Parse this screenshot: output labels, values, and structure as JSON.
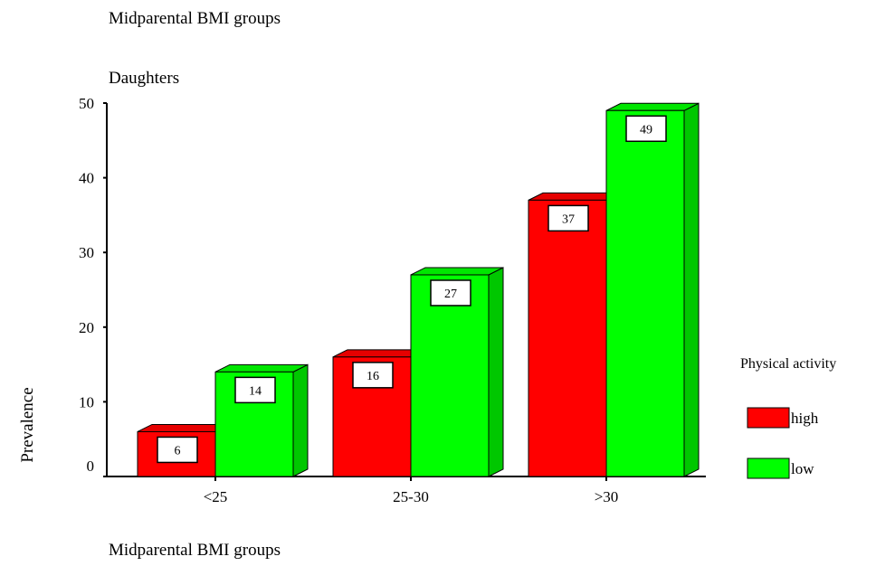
{
  "chart_data": {
    "type": "bar",
    "title": "Midparental BMI groups",
    "subtitle": "Daughters",
    "xlabel": "Midparental BMI groups",
    "ylabel": "Prevalence",
    "categories": [
      "<25",
      "25-30",
      ">30"
    ],
    "ylim": [
      0,
      50
    ],
    "yticks": [
      0,
      10,
      20,
      30,
      40,
      50
    ],
    "series": [
      {
        "name": "high",
        "values": [
          6,
          16,
          37
        ],
        "labels": [
          "6",
          "16",
          "37"
        ],
        "color": "#ff0000"
      },
      {
        "name": "low",
        "values": [
          14,
          27,
          49
        ],
        "labels": [
          "14",
          "27",
          "49"
        ],
        "color": "#00ff00"
      }
    ],
    "legend": {
      "title": "Physical activity",
      "placement": "right"
    },
    "grid": false,
    "style": "3d"
  }
}
